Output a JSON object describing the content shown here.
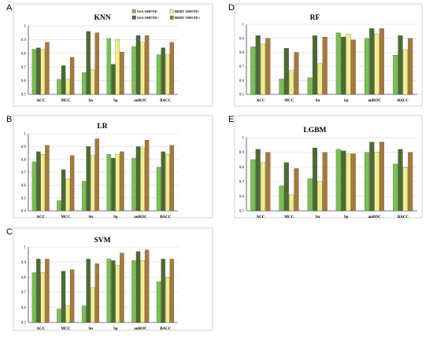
{
  "colors": {
    "SSA SMOTE-": "#78c152",
    "BERT SMOTE-": "#f2ef8a",
    "SSA SMOTE+": "#4b6b33",
    "BERT SMOTE+": "#a67a3c"
  },
  "legend_order": [
    "SSA SMOTE-",
    "BERT SMOTE-",
    "SSA SMOTE+",
    "BERT SMOTE+"
  ],
  "chart_data": [
    {
      "letter": "A",
      "type": "bar",
      "title": "KNN",
      "categories": [
        "ACC",
        "MCC",
        "Sn",
        "Sp",
        "auROC",
        "BACC"
      ],
      "ylim": [
        0.5,
        1
      ],
      "yticks": [
        0.5,
        0.6,
        0.7,
        0.8,
        0.9,
        1
      ],
      "grid": true,
      "legend": "top-right",
      "series": [
        {
          "name": "SSA SMOTE-",
          "values": [
            0.83,
            0.61,
            0.66,
            0.91,
            0.85,
            0.79
          ]
        },
        {
          "name": "SSA SMOTE+",
          "values": [
            0.84,
            0.71,
            0.96,
            0.72,
            0.93,
            0.84
          ]
        },
        {
          "name": "BERT SMOTE-",
          "values": [
            0.83,
            0.61,
            0.68,
            0.9,
            0.88,
            0.79
          ]
        },
        {
          "name": "BERT SMOTE+",
          "values": [
            0.88,
            0.77,
            0.95,
            0.81,
            0.93,
            0.88
          ]
        }
      ]
    },
    {
      "letter": "B",
      "type": "bar",
      "title": "LR",
      "categories": [
        "ACC",
        "MCC",
        "Sn",
        "Sp",
        "auROC",
        "BACC"
      ],
      "ylim": [
        0.4,
        1
      ],
      "yticks": [
        0.4,
        0.5,
        0.6,
        0.7,
        0.8,
        0.9,
        1
      ],
      "grid": true,
      "series": [
        {
          "name": "SSA SMOTE-",
          "values": [
            0.78,
            0.48,
            0.63,
            0.84,
            0.81,
            0.74
          ]
        },
        {
          "name": "SSA SMOTE+",
          "values": [
            0.86,
            0.72,
            0.9,
            0.81,
            0.9,
            0.86
          ]
        },
        {
          "name": "BERT SMOTE-",
          "values": [
            0.84,
            0.65,
            0.83,
            0.84,
            0.89,
            0.84
          ]
        },
        {
          "name": "BERT SMOTE+",
          "values": [
            0.91,
            0.83,
            0.96,
            0.86,
            0.95,
            0.91
          ]
        }
      ]
    },
    {
      "letter": "C",
      "type": "bar",
      "title": "SVM",
      "categories": [
        "ACC",
        "MCC",
        "Sn",
        "Sp",
        "auROC",
        "BACC"
      ],
      "ylim": [
        0.5,
        1
      ],
      "yticks": [
        0.5,
        0.6,
        0.7,
        0.8,
        0.9,
        1
      ],
      "grid": true,
      "series": [
        {
          "name": "SSA SMOTE-",
          "values": [
            0.83,
            0.59,
            0.61,
            0.92,
            0.91,
            0.77
          ]
        },
        {
          "name": "SSA SMOTE+",
          "values": [
            0.92,
            0.84,
            0.92,
            0.91,
            0.97,
            0.92
          ]
        },
        {
          "name": "BERT SMOTE-",
          "values": [
            0.83,
            0.61,
            0.73,
            0.88,
            0.91,
            0.8
          ]
        },
        {
          "name": "BERT SMOTE+",
          "values": [
            0.92,
            0.85,
            0.89,
            0.96,
            0.98,
            0.92
          ]
        }
      ]
    },
    {
      "letter": "D",
      "type": "bar",
      "title": "RF",
      "categories": [
        "ACC",
        "MCC",
        "Sn",
        "Sp",
        "auROC",
        "BACC"
      ],
      "ylim": [
        0.5,
        1
      ],
      "yticks": [
        0.5,
        0.6,
        0.7,
        0.8,
        0.9,
        1
      ],
      "grid": true,
      "series": [
        {
          "name": "SSA SMOTE-",
          "values": [
            0.84,
            0.61,
            0.62,
            0.94,
            0.9,
            0.78
          ]
        },
        {
          "name": "SSA SMOTE+",
          "values": [
            0.92,
            0.83,
            0.92,
            0.91,
            0.97,
            0.92
          ]
        },
        {
          "name": "BERT SMOTE-",
          "values": [
            0.86,
            0.67,
            0.72,
            0.93,
            0.93,
            0.82
          ]
        },
        {
          "name": "BERT SMOTE+",
          "values": [
            0.9,
            0.8,
            0.91,
            0.89,
            0.97,
            0.9
          ]
        }
      ]
    },
    {
      "letter": "E",
      "type": "bar",
      "title": "LGBM",
      "categories": [
        "ACC",
        "MCC",
        "Sn",
        "Sp",
        "auROC",
        "BACC"
      ],
      "ylim": [
        0.5,
        1
      ],
      "yticks": [
        0.5,
        0.6,
        0.7,
        0.8,
        0.9,
        1
      ],
      "grid": true,
      "series": [
        {
          "name": "SSA SMOTE-",
          "values": [
            0.85,
            0.67,
            0.72,
            0.92,
            0.9,
            0.82
          ]
        },
        {
          "name": "SSA SMOTE+",
          "values": [
            0.92,
            0.83,
            0.93,
            0.91,
            0.97,
            0.92
          ]
        },
        {
          "name": "BERT SMOTE-",
          "values": [
            0.83,
            0.61,
            0.7,
            0.89,
            0.9,
            0.8
          ]
        },
        {
          "name": "BERT SMOTE+",
          "values": [
            0.9,
            0.79,
            0.9,
            0.89,
            0.97,
            0.9
          ]
        }
      ]
    }
  ]
}
